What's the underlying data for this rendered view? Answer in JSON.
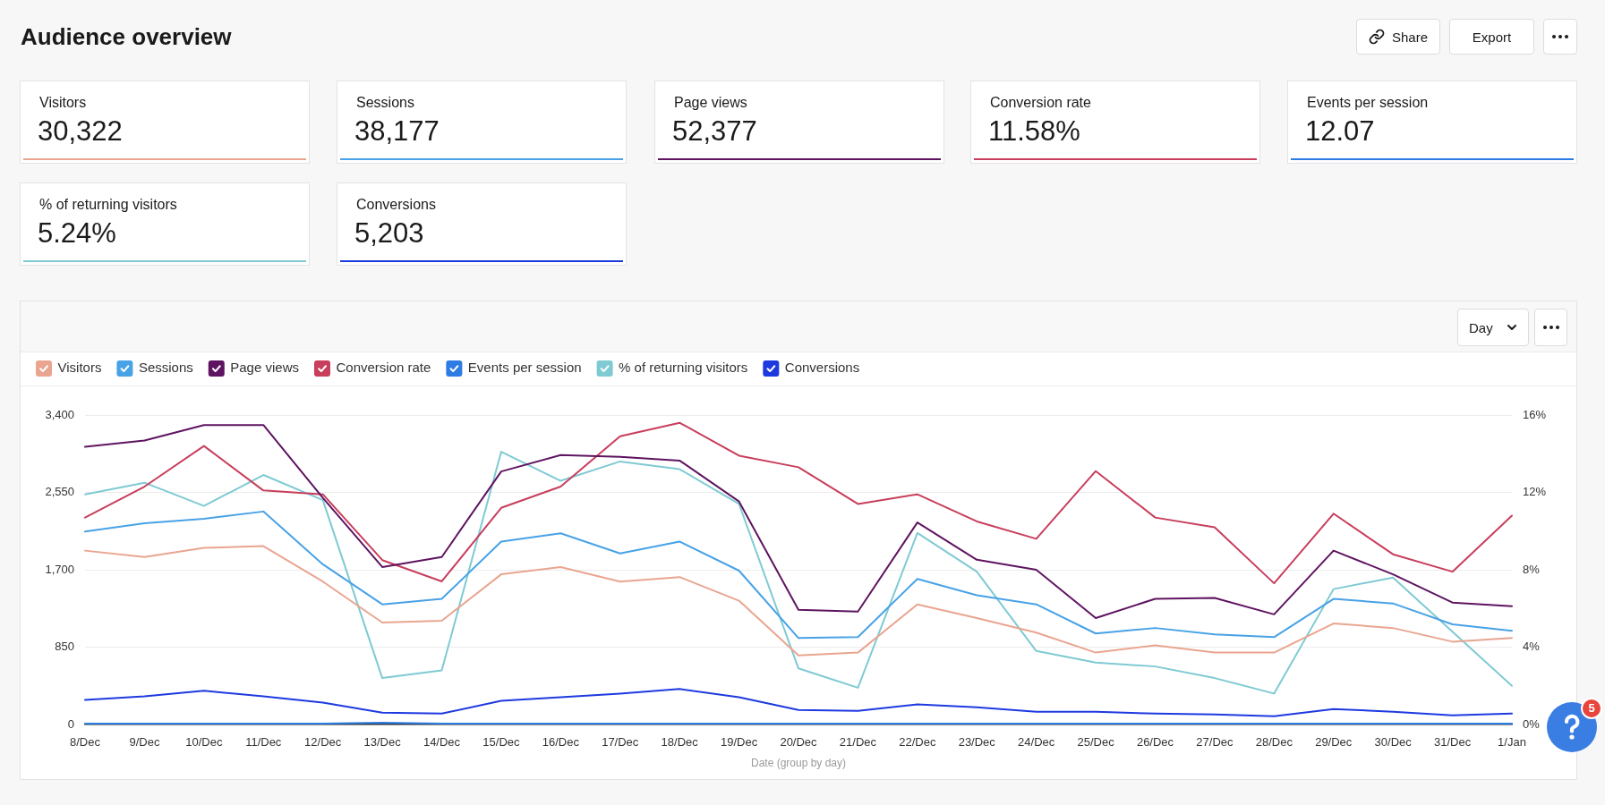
{
  "chart_data": [
    {
      "type": "other",
      "title": "Audience overview",
      "annotations": [
        "Share",
        "Export"
      ]
    },
    {
      "type": "other",
      "title": "Visitors",
      "annotations": [
        "30,322"
      ],
      "color": "#e9a590"
    },
    {
      "type": "other",
      "title": "Sessions",
      "annotations": [
        "38,177"
      ],
      "color": "#48a2e6"
    },
    {
      "type": "other",
      "title": "Page views",
      "annotations": [
        "52,377"
      ],
      "color": "#5e1460"
    },
    {
      "type": "other",
      "title": "Conversion rate",
      "annotations": [
        "11.58%"
      ],
      "color": "#c83e5c"
    },
    {
      "type": "other",
      "title": "Events per session",
      "annotations": [
        "12.07"
      ],
      "color": "#2d7ce4"
    },
    {
      "type": "other",
      "title": "% of returning visitors",
      "annotations": [
        "5.24%"
      ],
      "color": "#7fcad3"
    },
    {
      "type": "other",
      "title": "Conversions",
      "annotations": [
        "5,203"
      ],
      "color": "#1d3ae0"
    },
    {
      "type": "line",
      "xlabel": "Date (group by day)",
      "annotations": [
        "Day"
      ],
      "categories": [
        "8/Dec",
        "9/Dec",
        "10/Dec",
        "11/Dec",
        "12/Dec",
        "13/Dec",
        "14/Dec",
        "15/Dec",
        "16/Dec",
        "17/Dec",
        "18/Dec",
        "19/Dec",
        "20/Dec",
        "21/Dec",
        "22/Dec",
        "23/Dec",
        "24/Dec",
        "25/Dec",
        "26/Dec",
        "27/Dec",
        "28/Dec",
        "29/Dec",
        "30/Dec",
        "31/Dec",
        "1/Jan"
      ],
      "series": [
        {
          "name": "Visitors",
          "color": "#e9a590",
          "values": [
            1910,
            1840,
            1940,
            1960,
            1570,
            1120,
            1140,
            1650,
            1730,
            1570,
            1620,
            1360,
            760,
            790,
            1320,
            1170,
            1010,
            790,
            870,
            790,
            790,
            1110,
            1060,
            910,
            950
          ]
        },
        {
          "name": "Sessions",
          "color": "#48a2e6",
          "values": [
            2120,
            2210,
            2260,
            2340,
            1760,
            1320,
            1380,
            2010,
            2100,
            1880,
            2010,
            1690,
            950,
            960,
            1600,
            1420,
            1320,
            1000,
            1060,
            990,
            960,
            1380,
            1330,
            1100,
            1030
          ]
        },
        {
          "name": "Page views",
          "color": "#5e1460",
          "values": [
            3050,
            3120,
            3290,
            3290,
            2490,
            1730,
            1840,
            2780,
            2960,
            2940,
            2900,
            2450,
            1260,
            1240,
            2220,
            1810,
            1700,
            1170,
            1380,
            1390,
            1210,
            1910,
            1650,
            1340,
            1300
          ]
        },
        {
          "name": "Conversion rate",
          "color": "#c83e5c",
          "axis": "y2",
          "values": [
            10.7,
            12.3,
            14.4,
            12.1,
            11.9,
            8.5,
            7.4,
            11.2,
            12.3,
            14.9,
            15.6,
            13.9,
            13.3,
            11.4,
            11.9,
            10.5,
            9.6,
            13.1,
            10.7,
            10.2,
            7.3,
            10.9,
            8.8,
            7.9,
            10.8
          ]
        },
        {
          "name": "Events per session",
          "color": "#2d7ce4",
          "values": [
            10,
            10,
            10,
            10,
            10,
            20,
            10,
            10,
            10,
            10,
            10,
            10,
            10,
            10,
            10,
            10,
            10,
            10,
            10,
            10,
            10,
            10,
            10,
            10,
            10
          ]
        },
        {
          "name": "% of returning visitors",
          "color": "#7fcad3",
          "axis": "y2",
          "values": [
            11.9,
            12.5,
            11.3,
            12.9,
            11.6,
            2.4,
            2.8,
            14.1,
            12.6,
            13.6,
            13.2,
            11.4,
            2.9,
            1.9,
            9.9,
            7.9,
            3.8,
            3.2,
            3.0,
            2.4,
            1.6,
            7.0,
            7.6,
            4.8,
            2.0
          ]
        },
        {
          "name": "Conversions",
          "color": "#1d3ae0",
          "values": [
            270,
            310,
            370,
            310,
            240,
            130,
            120,
            260,
            300,
            340,
            390,
            300,
            160,
            150,
            220,
            190,
            140,
            140,
            120,
            110,
            90,
            170,
            140,
            100,
            120
          ]
        }
      ],
      "ylim": [
        0,
        3400
      ],
      "yticks": [
        0,
        850,
        {
          "value": 1700,
          "label": "1,700"
        },
        {
          "value": 2550,
          "label": "2,550"
        },
        {
          "value": 3400,
          "label": "3,400"
        }
      ],
      "y2lim": [
        0,
        16
      ],
      "y2ticks": [
        {
          "value": 0,
          "label": "0%"
        },
        {
          "value": 4,
          "label": "4%"
        },
        {
          "value": 8,
          "label": "8%"
        },
        {
          "value": 12,
          "label": "12%"
        },
        {
          "value": 16,
          "label": "16%"
        }
      ],
      "grid": "y",
      "legend": "top left"
    },
    {
      "type": "other",
      "annotations": [
        "5"
      ]
    }
  ]
}
